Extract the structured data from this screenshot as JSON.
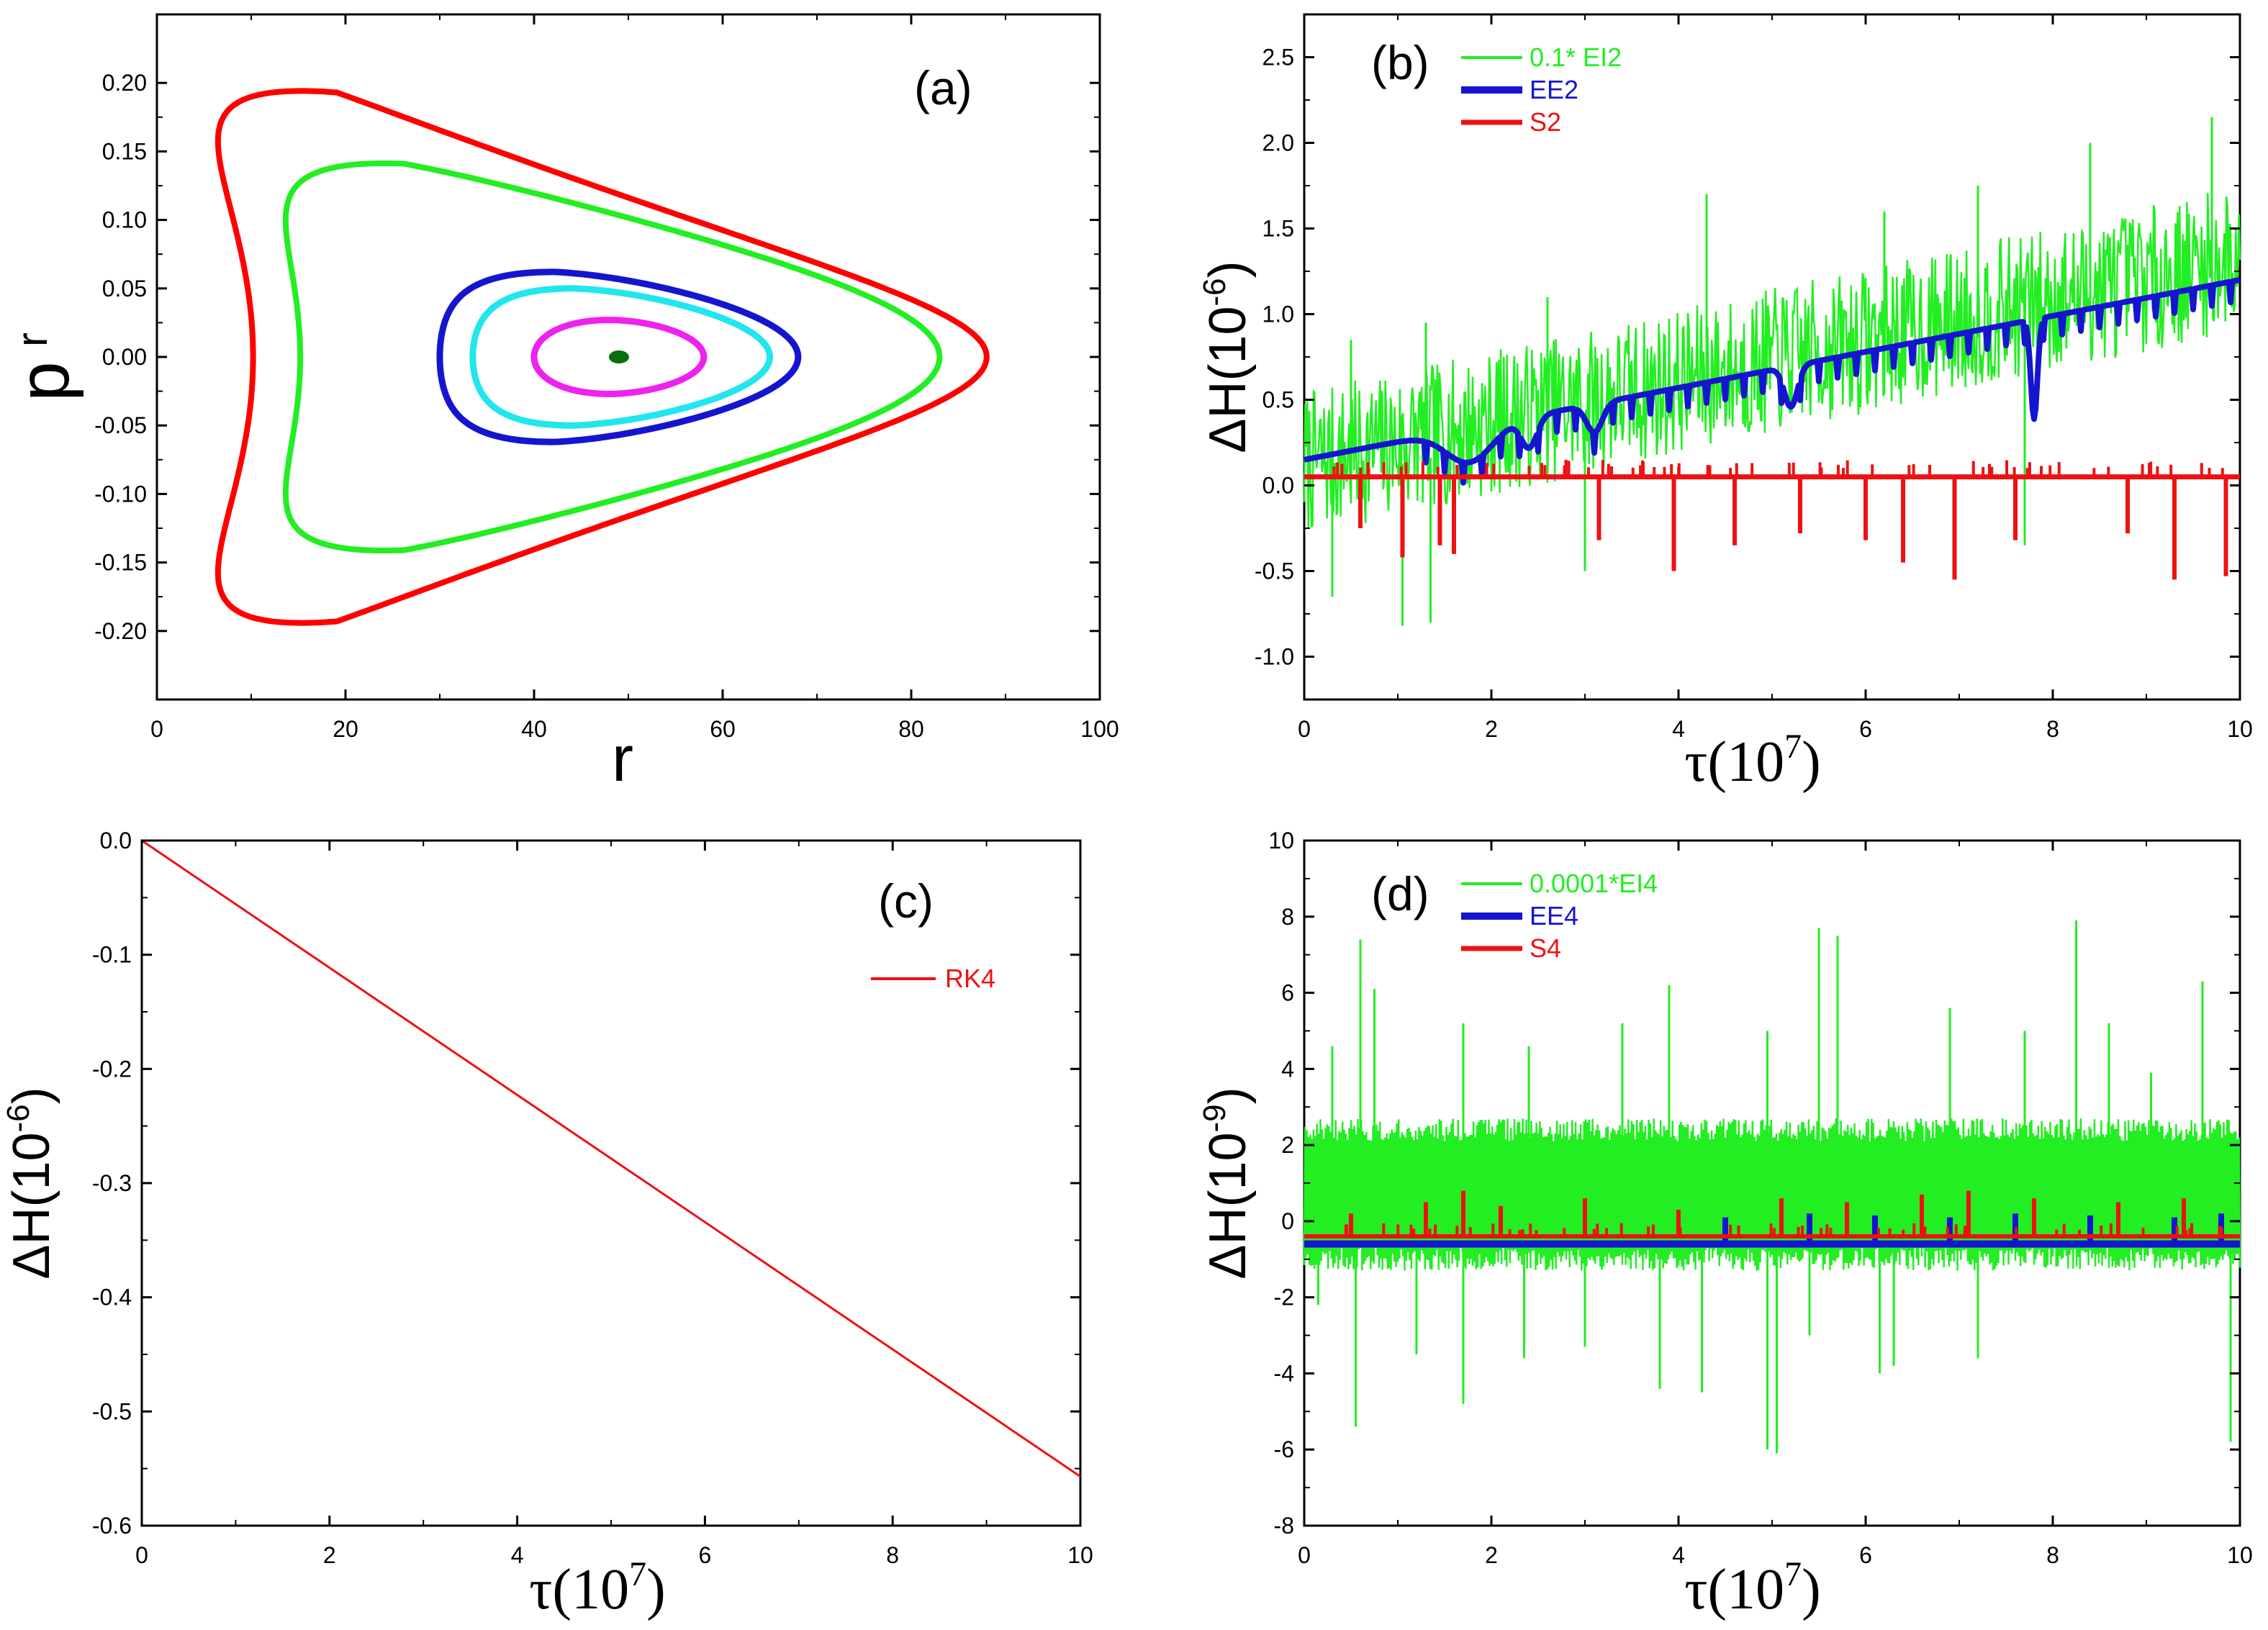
{
  "chart_data": [
    {
      "id": "a",
      "type": "scatter",
      "panel_label": "(a)",
      "xlabel": "r",
      "ylabel_main": "p",
      "ylabel_sub": "r",
      "xlim": [
        0,
        100
      ],
      "ylim": [
        -0.25,
        0.25
      ],
      "xticks": [
        0,
        20,
        40,
        60,
        80,
        100
      ],
      "xtick_labels": [
        "0",
        "20",
        "40",
        "60",
        "80",
        "100"
      ],
      "yticks": [
        -0.2,
        -0.15,
        -0.1,
        -0.05,
        0.0,
        0.05,
        0.1,
        0.15,
        0.2
      ],
      "ytick_labels": [
        "-0.20",
        "-0.15",
        "-0.10",
        "-0.05",
        "0.00",
        "0.05",
        "0.10",
        "0.15",
        "0.20"
      ],
      "orbits": [
        {
          "name": "orbit-red",
          "color": "#ff0000",
          "r_min": 10.2,
          "r_max": 88.0,
          "r_at_extreme": 17.5,
          "p_max": 0.193,
          "shape": 0.9
        },
        {
          "name": "orbit-green",
          "color": "#22ee22",
          "r_min": 15.2,
          "r_max": 83.0,
          "r_at_extreme": 25.0,
          "p_max": 0.141,
          "shape": 0.55
        },
        {
          "name": "orbit-blue",
          "color": "#1515d0",
          "r_min": 30.0,
          "r_max": 68.0,
          "r_at_extreme": 42.0,
          "p_max": 0.062,
          "shape": 0.2
        },
        {
          "name": "orbit-cyan",
          "color": "#22e6ee",
          "r_min": 33.5,
          "r_max": 65.0,
          "r_at_extreme": 44.0,
          "p_max": 0.05,
          "shape": 0.15
        },
        {
          "name": "orbit-magenta",
          "color": "#ee22ee",
          "r_min": 40.0,
          "r_max": 58.0,
          "r_at_extreme": 48.0,
          "p_max": 0.027,
          "shape": 0.05
        }
      ],
      "center_point": {
        "r": 49.0,
        "p": 0.0,
        "color": "#0a6e0a"
      }
    },
    {
      "id": "b",
      "type": "line",
      "panel_label": "(b)",
      "xlabel": "τ(10",
      "xlabel_exp": "7",
      "xlabel_close": ")",
      "ylabel": "ΔH(10",
      "ylabel_exp": "-6",
      "ylabel_close": ")",
      "xlim": [
        0,
        10
      ],
      "ylim": [
        -1.25,
        2.75
      ],
      "xticks": [
        0,
        2,
        4,
        6,
        8,
        10
      ],
      "xtick_labels": [
        "0",
        "2",
        "4",
        "6",
        "8",
        "10"
      ],
      "yticks": [
        -1.0,
        -0.5,
        0.0,
        0.5,
        1.0,
        1.5,
        2.0,
        2.5
      ],
      "ytick_labels": [
        "-1.0",
        "-0.5",
        "0.0",
        "0.5",
        "1.0",
        "1.5",
        "2.0",
        "2.5"
      ],
      "series": [
        {
          "name": "0.1* EI2",
          "color": "#22ee22",
          "trend_start": 0.0,
          "trend_end": 1.2,
          "band_low": -0.3,
          "band_high": 0.55,
          "spikes_up": [
            [
              0.5,
              0.85
            ],
            [
              1.3,
              0.95
            ],
            [
              2.6,
              1.1
            ],
            [
              4.3,
              1.7
            ],
            [
              6.2,
              1.6
            ],
            [
              7.2,
              1.75
            ],
            [
              8.4,
              2.0
            ],
            [
              9.7,
              2.15
            ]
          ],
          "spikes_down": [
            [
              0.3,
              -0.65
            ],
            [
              1.05,
              -0.82
            ],
            [
              1.35,
              -0.8
            ],
            [
              3.0,
              -0.5
            ],
            [
              7.7,
              -0.35
            ]
          ]
        },
        {
          "name": "EE2",
          "color": "#1515d0",
          "trend_start": 0.15,
          "trend_end": 1.2,
          "dips": [
            [
              1.75,
              0.0,
              0.35
            ],
            [
              2.4,
              0.1,
              0.12
            ],
            [
              3.1,
              0.2,
              0.12
            ],
            [
              5.2,
              0.3,
              0.1
            ],
            [
              7.8,
              0.0,
              0.05
            ]
          ]
        },
        {
          "name": "S2",
          "color": "#ee1111",
          "level": 0.05,
          "spikes_down": [
            [
              0.6,
              -0.25
            ],
            [
              1.05,
              -0.42
            ],
            [
              1.45,
              -0.35
            ],
            [
              1.6,
              -0.4
            ],
            [
              3.15,
              -0.32
            ],
            [
              3.95,
              -0.5
            ],
            [
              4.6,
              -0.35
            ],
            [
              5.3,
              -0.28
            ],
            [
              6.0,
              -0.32
            ],
            [
              6.4,
              -0.45
            ],
            [
              6.95,
              -0.55
            ],
            [
              7.6,
              -0.32
            ],
            [
              8.8,
              -0.28
            ],
            [
              9.3,
              -0.55
            ],
            [
              9.85,
              -0.53
            ]
          ]
        }
      ]
    },
    {
      "id": "c",
      "type": "line",
      "panel_label": "(c)",
      "xlabel": "τ(10",
      "xlabel_exp": "7",
      "xlabel_close": ")",
      "ylabel": "ΔH(10",
      "ylabel_exp": "-6",
      "ylabel_close": ")",
      "xlim": [
        0,
        10
      ],
      "ylim": [
        -0.6,
        0.0
      ],
      "xticks": [
        0,
        2,
        4,
        6,
        8,
        10
      ],
      "xtick_labels": [
        "0",
        "2",
        "4",
        "6",
        "8",
        "10"
      ],
      "yticks": [
        -0.6,
        -0.5,
        -0.4,
        -0.3,
        -0.2,
        -0.1,
        0.0
      ],
      "ytick_labels": [
        "-0.6",
        "-0.5",
        "-0.4",
        "-0.3",
        "-0.2",
        "-0.1",
        "0.0"
      ],
      "series": [
        {
          "name": "RK4",
          "color": "#ee1111",
          "x": [
            0,
            10
          ],
          "y": [
            0.0,
            -0.557
          ]
        }
      ]
    },
    {
      "id": "d",
      "type": "line",
      "panel_label": "(d)",
      "xlabel": "τ(10",
      "xlabel_exp": "7",
      "xlabel_close": ")",
      "ylabel": "ΔH(10",
      "ylabel_exp": "-9",
      "ylabel_close": ")",
      "xlim": [
        0,
        10
      ],
      "ylim": [
        -8,
        10
      ],
      "xticks": [
        0,
        2,
        4,
        6,
        8,
        10
      ],
      "xtick_labels": [
        "0",
        "2",
        "4",
        "6",
        "8",
        "10"
      ],
      "yticks": [
        -8,
        -6,
        -4,
        -2,
        0,
        2,
        4,
        6,
        8,
        10
      ],
      "ytick_labels": [
        "-8",
        "-6",
        "-4",
        "-2",
        "0",
        "2",
        "4",
        "6",
        "8",
        "10"
      ],
      "series": [
        {
          "name": "0.0001*EI4",
          "color": "#22ee22",
          "band_low": -1.3,
          "band_high": 2.7,
          "spikes_up": [
            [
              0.3,
              4.6
            ],
            [
              0.6,
              7.4
            ],
            [
              0.75,
              6.1
            ],
            [
              1.7,
              5.2
            ],
            [
              2.4,
              4.6
            ],
            [
              3.4,
              5.2
            ],
            [
              3.9,
              6.2
            ],
            [
              4.95,
              5.0
            ],
            [
              5.5,
              7.7
            ],
            [
              5.7,
              7.5
            ],
            [
              6.9,
              5.6
            ],
            [
              7.7,
              5.0
            ],
            [
              8.25,
              7.9
            ],
            [
              8.6,
              5.2
            ],
            [
              9.05,
              3.9
            ],
            [
              9.6,
              6.3
            ]
          ],
          "spikes_down": [
            [
              0.15,
              -2.2
            ],
            [
              0.55,
              -5.4
            ],
            [
              1.2,
              -3.5
            ],
            [
              1.7,
              -4.8
            ],
            [
              2.35,
              -3.6
            ],
            [
              3.0,
              -3.3
            ],
            [
              3.8,
              -4.4
            ],
            [
              4.25,
              -4.5
            ],
            [
              4.95,
              -6.0
            ],
            [
              5.05,
              -6.1
            ],
            [
              5.4,
              -3.0
            ],
            [
              6.3,
              -3.8
            ],
            [
              6.15,
              -4.0
            ],
            [
              7.2,
              -3.6
            ],
            [
              9.9,
              -5.8
            ]
          ]
        },
        {
          "name": "EE4",
          "color": "#1515d0",
          "level": -0.6,
          "bumps": [
            [
              4.5,
              0.1
            ],
            [
              5.4,
              0.2
            ],
            [
              6.1,
              0.15
            ],
            [
              6.9,
              0.1
            ],
            [
              7.6,
              0.2
            ],
            [
              8.4,
              0.15
            ],
            [
              9.3,
              0.1
            ],
            [
              9.8,
              0.2
            ]
          ]
        },
        {
          "name": "S4",
          "color": "#ee1111",
          "level": -0.4,
          "bumps": [
            [
              0.5,
              0.2
            ],
            [
              1.3,
              0.5
            ],
            [
              1.7,
              0.8
            ],
            [
              2.1,
              0.4
            ],
            [
              3.0,
              0.6
            ],
            [
              4.0,
              0.3
            ],
            [
              5.1,
              0.6
            ],
            [
              5.8,
              0.5
            ],
            [
              6.6,
              0.7
            ],
            [
              7.1,
              0.8
            ],
            [
              7.8,
              0.6
            ],
            [
              8.7,
              0.5
            ],
            [
              9.4,
              0.6
            ]
          ]
        }
      ]
    }
  ]
}
